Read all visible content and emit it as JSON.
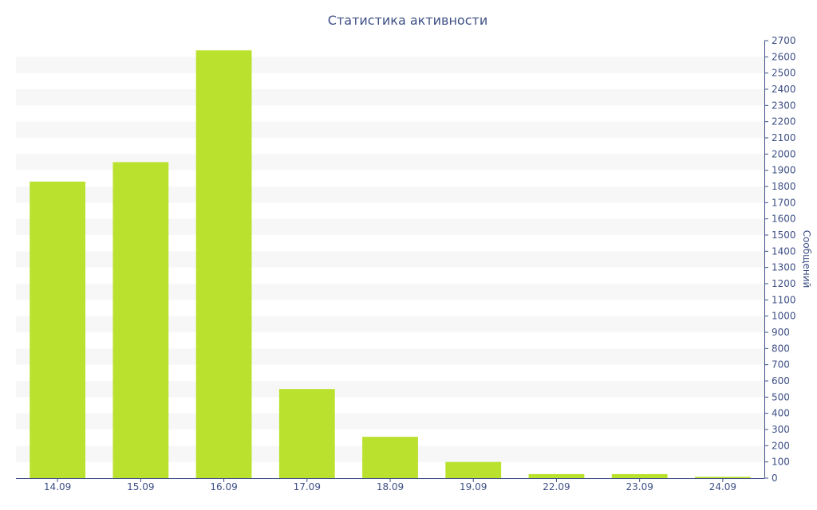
{
  "chart_data": {
    "type": "bar",
    "title": "Статистика активности",
    "xlabel": "",
    "ylabel": "Сообщений",
    "categories": [
      "14.09",
      "15.09",
      "16.09",
      "17.09",
      "18.09",
      "19.09",
      "22.09",
      "23.09",
      "24.09"
    ],
    "values": [
      1830,
      1950,
      2640,
      550,
      255,
      100,
      25,
      25,
      8
    ],
    "ylim": [
      0,
      2700
    ],
    "ytick_step": 100,
    "y_axis_side": "right",
    "grid": "alternating horizontal bands",
    "legend": "none"
  },
  "colors": {
    "bar": "#bbe12f",
    "band": "#f7f7f7",
    "text": "#3d4f86",
    "axis": "#3d4f86"
  }
}
